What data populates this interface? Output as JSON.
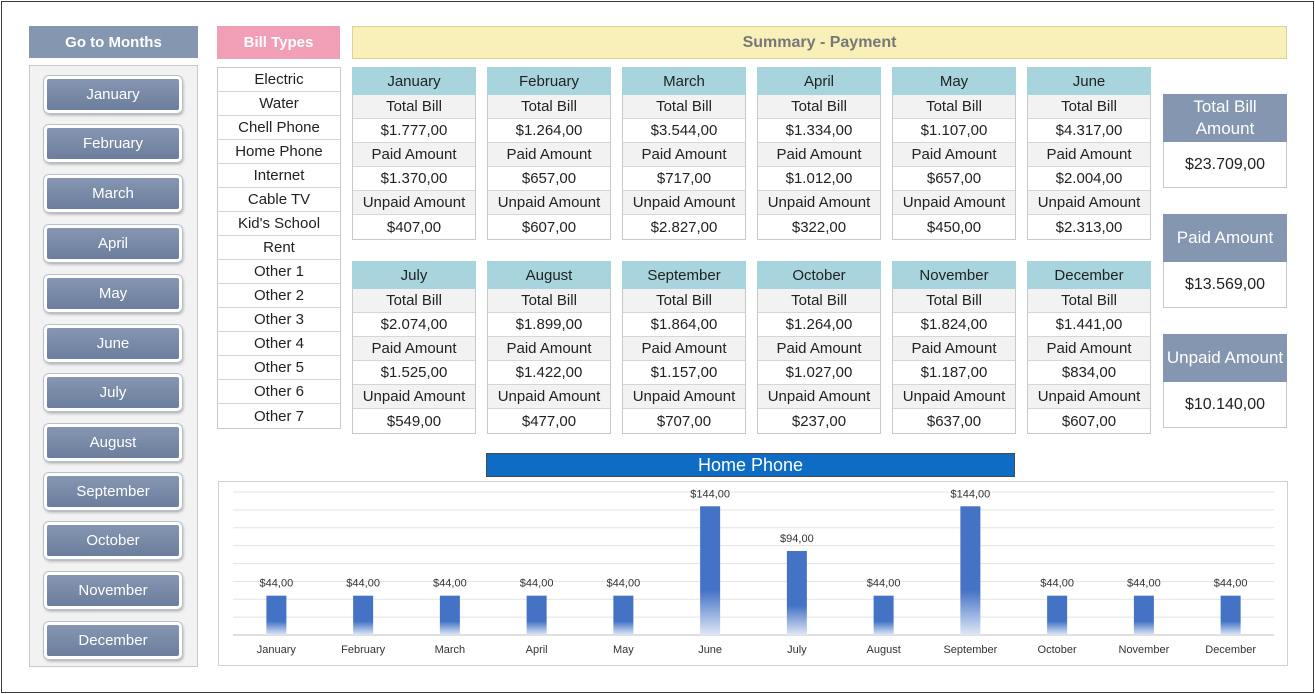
{
  "nav": {
    "header": "Go to Months",
    "items": [
      "January",
      "February",
      "March",
      "April",
      "May",
      "June",
      "July",
      "August",
      "September",
      "October",
      "November",
      "December"
    ]
  },
  "bills": {
    "header": "Bill Types",
    "items": [
      "Electric",
      "Water",
      "Chell Phone",
      "Home Phone",
      "Internet",
      "Cable TV",
      "Kid's School",
      "Rent",
      "Other 1",
      "Other 2",
      "Other 3",
      "Other 4",
      "Other 5",
      "Other 6",
      "Other 7"
    ]
  },
  "summary": {
    "title": "Summary - Payment"
  },
  "labels": {
    "total_bill": "Total Bill",
    "paid_amount": "Paid Amount",
    "unpaid_amount": "Unpaid Amount"
  },
  "months": [
    {
      "name": "January",
      "total": "$1.777,00",
      "paid": "$1.370,00",
      "unpaid": "$407,00"
    },
    {
      "name": "February",
      "total": "$1.264,00",
      "paid": "$657,00",
      "unpaid": "$607,00"
    },
    {
      "name": "March",
      "total": "$3.544,00",
      "paid": "$717,00",
      "unpaid": "$2.827,00"
    },
    {
      "name": "April",
      "total": "$1.334,00",
      "paid": "$1.012,00",
      "unpaid": "$322,00"
    },
    {
      "name": "May",
      "total": "$1.107,00",
      "paid": "$657,00",
      "unpaid": "$450,00"
    },
    {
      "name": "June",
      "total": "$4.317,00",
      "paid": "$2.004,00",
      "unpaid": "$2.313,00"
    },
    {
      "name": "July",
      "total": "$2.074,00",
      "paid": "$1.525,00",
      "unpaid": "$549,00"
    },
    {
      "name": "August",
      "total": "$1.899,00",
      "paid": "$1.422,00",
      "unpaid": "$477,00"
    },
    {
      "name": "September",
      "total": "$1.864,00",
      "paid": "$1.157,00",
      "unpaid": "$707,00"
    },
    {
      "name": "October",
      "total": "$1.264,00",
      "paid": "$1.027,00",
      "unpaid": "$237,00"
    },
    {
      "name": "November",
      "total": "$1.824,00",
      "paid": "$1.187,00",
      "unpaid": "$637,00"
    },
    {
      "name": "December",
      "total": "$1.441,00",
      "paid": "$834,00",
      "unpaid": "$607,00"
    }
  ],
  "totals": [
    {
      "label": "Total Bill Amount",
      "value": "$23.709,00"
    },
    {
      "label": "Paid Amount",
      "value": "$13.569,00"
    },
    {
      "label": "Unpaid Amount",
      "value": "$10.140,00"
    }
  ],
  "colors": {
    "nav_button": "#7788a6",
    "bill_header": "#f19fb6",
    "summary_header": "#f8f0b8",
    "month_header": "#a8d5dd",
    "total_header": "#8496b0",
    "chart_title": "#0e6cc4",
    "bar": "#4472c4"
  },
  "chart_data": {
    "type": "bar",
    "title": "Home Phone",
    "categories": [
      "January",
      "February",
      "March",
      "April",
      "May",
      "June",
      "July",
      "August",
      "September",
      "October",
      "November",
      "December"
    ],
    "values": [
      44,
      44,
      44,
      44,
      44,
      144,
      94,
      44,
      144,
      44,
      44,
      44
    ],
    "data_labels": [
      "$44,00",
      "$44,00",
      "$44,00",
      "$44,00",
      "$44,00",
      "$144,00",
      "$94,00",
      "$44,00",
      "$144,00",
      "$44,00",
      "$44,00",
      "$44,00"
    ],
    "ylim": [
      0,
      160
    ],
    "grid": true,
    "legend": "none"
  }
}
